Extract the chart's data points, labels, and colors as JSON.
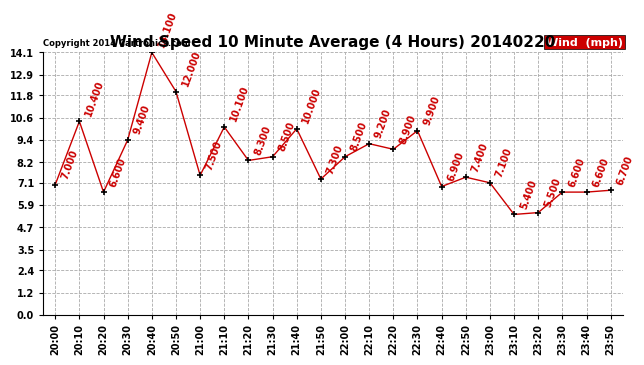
{
  "title": "Wind Speed 10 Minute Average (4 Hours) 20140220",
  "copyright": "Copyright 2014 Cartronics.com",
  "legend_label": "Wind  (mph)",
  "x_labels": [
    "20:00",
    "20:10",
    "20:20",
    "20:30",
    "20:40",
    "20:50",
    "21:00",
    "21:10",
    "21:20",
    "21:30",
    "21:40",
    "21:50",
    "22:00",
    "22:10",
    "22:20",
    "22:30",
    "22:40",
    "22:50",
    "23:00",
    "23:10",
    "23:20",
    "23:30",
    "23:40",
    "23:50"
  ],
  "y_values": [
    7.0,
    10.4,
    6.6,
    9.4,
    14.1,
    12.0,
    7.5,
    10.1,
    8.3,
    8.5,
    10.0,
    7.3,
    8.5,
    9.2,
    8.9,
    9.9,
    6.9,
    7.4,
    7.1,
    5.4,
    5.5,
    6.6,
    6.6,
    6.7
  ],
  "y_label_strs": [
    "7.000",
    "10.400",
    "6.600",
    "9.400",
    "14.100",
    "12.000",
    "7.500",
    "10.100",
    "8.300",
    "8.500",
    "10.000",
    "7.300",
    "8.500",
    "9.200",
    "8.900",
    "9.900",
    "6.900",
    "7.400",
    "7.100",
    "5.400",
    "5.500",
    "6.600",
    "6.600",
    "6.700"
  ],
  "line_color": "#cc0000",
  "marker_color": "#000000",
  "label_color": "#cc0000",
  "legend_bg": "#cc0000",
  "legend_text_color": "#ffffff",
  "ylim": [
    0.0,
    14.1
  ],
  "yticks": [
    0.0,
    1.2,
    2.4,
    3.5,
    4.7,
    5.9,
    7.1,
    8.2,
    9.4,
    10.6,
    11.8,
    12.9,
    14.1
  ],
  "bg_color": "#ffffff",
  "grid_color": "#aaaaaa",
  "title_fontsize": 11,
  "tick_fontsize": 7,
  "annotation_fontsize": 7,
  "legend_fontsize": 8
}
